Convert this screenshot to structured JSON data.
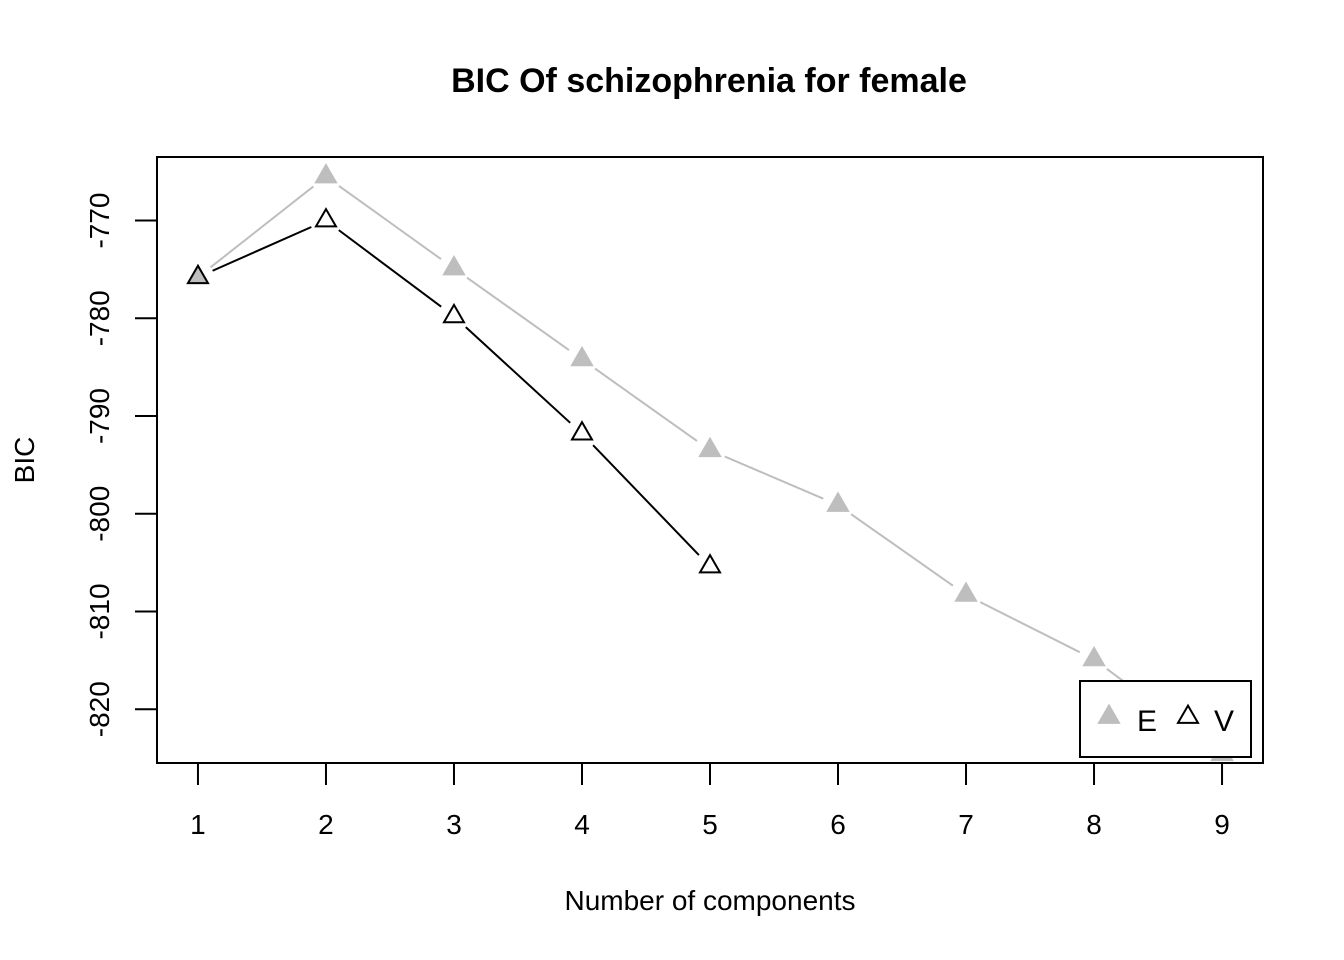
{
  "chart_data": {
    "type": "line",
    "title": "BIC Of schizophrenia for female",
    "xlabel": "Number of components",
    "ylabel": "BIC",
    "xlim": [
      0.68,
      9.32
    ],
    "ylim": [
      -825.5,
      -763.5
    ],
    "x_ticks": [
      1,
      2,
      3,
      4,
      5,
      6,
      7,
      8,
      9
    ],
    "y_ticks": [
      -820,
      -810,
      -800,
      -790,
      -780,
      -770
    ],
    "grid": false,
    "legend_position": "bottom-right",
    "series": [
      {
        "name": "E",
        "color": "#BEBEBE",
        "marker": "filled-triangle",
        "x": [
          1,
          2,
          3,
          4,
          5,
          6,
          7,
          8,
          9
        ],
        "y": [
          -775.8,
          -765.5,
          -774.9,
          -784.2,
          -793.5,
          -799.1,
          -808.3,
          -814.9,
          -824.6
        ]
      },
      {
        "name": "V",
        "color": "#000000",
        "marker": "open-triangle",
        "x": [
          1,
          2,
          3,
          4,
          5
        ],
        "y": [
          -775.8,
          -770.0,
          -779.8,
          -791.8,
          -805.4
        ]
      }
    ]
  }
}
